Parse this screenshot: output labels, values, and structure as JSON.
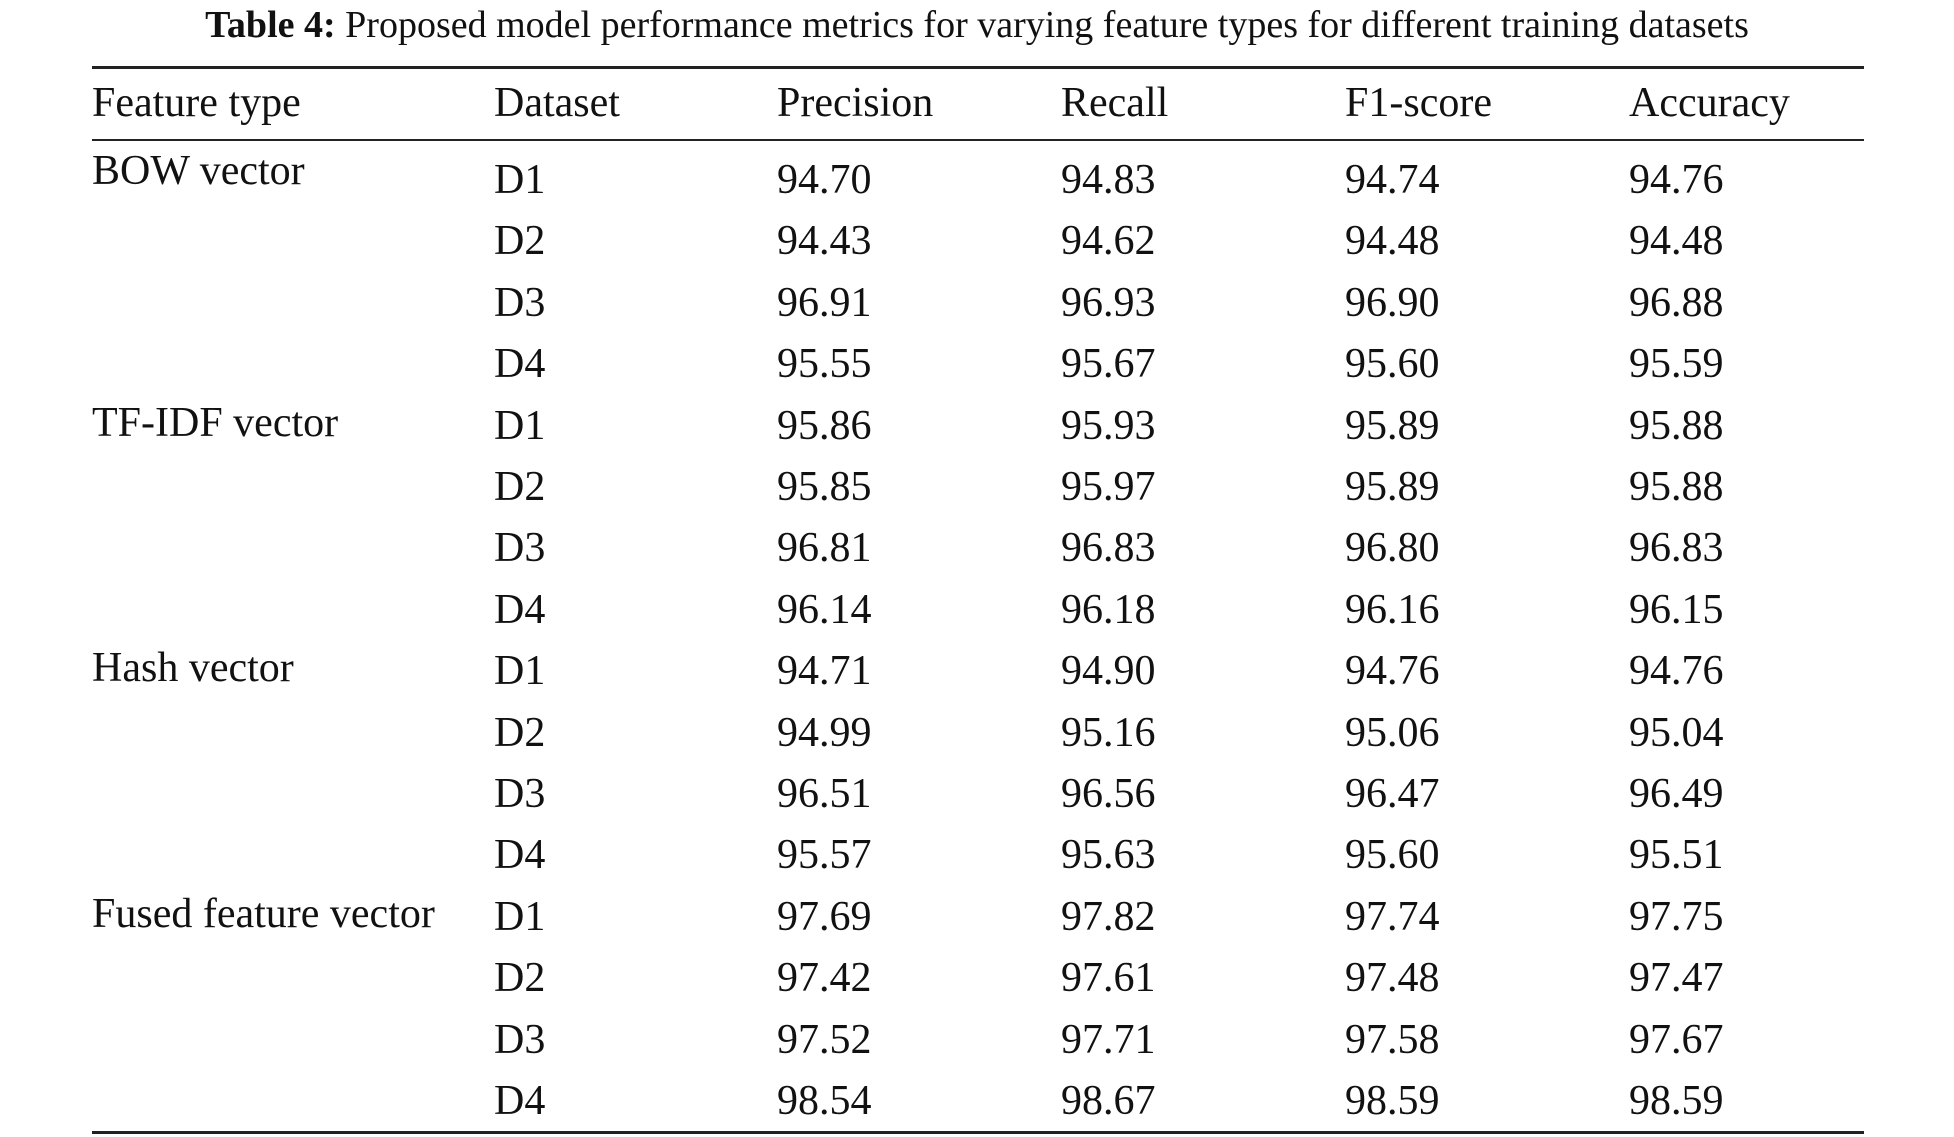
{
  "caption": {
    "label": "Table 4:",
    "text": " Proposed model performance metrics for varying feature types for different training datasets"
  },
  "table": {
    "headers": [
      "Feature type",
      "Dataset",
      "Precision",
      "Recall",
      "F1-score",
      "Accuracy"
    ],
    "groups": [
      {
        "feature": "BOW vector",
        "rows": [
          [
            "D1",
            "94.70",
            "94.83",
            "94.74",
            "94.76"
          ],
          [
            "D2",
            "94.43",
            "94.62",
            "94.48",
            "94.48"
          ],
          [
            "D3",
            "96.91",
            "96.93",
            "96.90",
            "96.88"
          ],
          [
            "D4",
            "95.55",
            "95.67",
            "95.60",
            "95.59"
          ]
        ]
      },
      {
        "feature": "TF-IDF vector",
        "rows": [
          [
            "D1",
            "95.86",
            "95.93",
            "95.89",
            "95.88"
          ],
          [
            "D2",
            "95.85",
            "95.97",
            "95.89",
            "95.88"
          ],
          [
            "D3",
            "96.81",
            "96.83",
            "96.80",
            "96.83"
          ],
          [
            "D4",
            "96.14",
            "96.18",
            "96.16",
            "96.15"
          ]
        ]
      },
      {
        "feature": "Hash vector",
        "rows": [
          [
            "D1",
            "94.71",
            "94.90",
            "94.76",
            "94.76"
          ],
          [
            "D2",
            "94.99",
            "95.16",
            "95.06",
            "95.04"
          ],
          [
            "D3",
            "96.51",
            "96.56",
            "96.47",
            "96.49"
          ],
          [
            "D4",
            "95.57",
            "95.63",
            "95.60",
            "95.51"
          ]
        ]
      },
      {
        "feature": "Fused feature vector",
        "rows": [
          [
            "D1",
            "97.69",
            "97.82",
            "97.74",
            "97.75"
          ],
          [
            "D2",
            "97.42",
            "97.61",
            "97.48",
            "97.47"
          ],
          [
            "D3",
            "97.52",
            "97.71",
            "97.58",
            "97.67"
          ],
          [
            "D4",
            "98.54",
            "98.67",
            "98.59",
            "98.59"
          ]
        ]
      }
    ]
  }
}
